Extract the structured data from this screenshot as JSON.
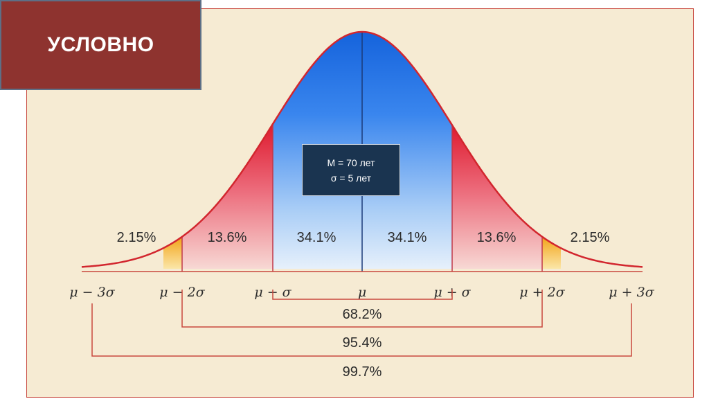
{
  "title": "УСЛОВНО",
  "info_box": {
    "line1": "M = 70 лет",
    "line2": "σ = 5 лет"
  },
  "segments": [
    {
      "label": "2.15%",
      "value": 2.15
    },
    {
      "label": "13.6%",
      "value": 13.6
    },
    {
      "label": "34.1%",
      "value": 34.1
    },
    {
      "label": "34.1%",
      "value": 34.1
    },
    {
      "label": "13.6%",
      "value": 13.6
    },
    {
      "label": "2.15%",
      "value": 2.15
    }
  ],
  "axis_labels": [
    "μ − 3σ",
    "μ − 2σ",
    "μ − σ",
    "μ",
    "μ + σ",
    "μ + 2σ",
    "μ + 3σ"
  ],
  "ranges": [
    {
      "label": "68.2%",
      "from": "μ − σ",
      "to": "μ + σ"
    },
    {
      "label": "95.4%",
      "from": "μ − 2σ",
      "to": "μ + 2σ"
    },
    {
      "label": "99.7%",
      "from": "μ − 3σ",
      "to": "μ + 3σ"
    }
  ],
  "colors": {
    "title_bg": "#8e332f",
    "info_bg": "#1a3450",
    "curve": "#d2262e",
    "center_blue": "#1f6fe0",
    "band_red": "#e02434",
    "tail_yellow": "#f2b01a",
    "background": "#f6ebd3"
  }
}
